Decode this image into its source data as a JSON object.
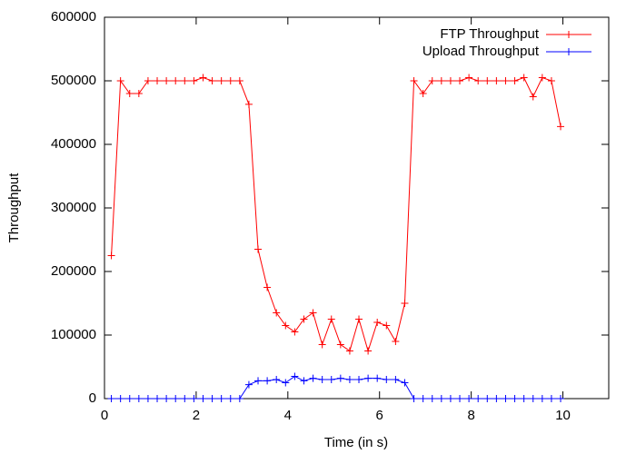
{
  "chart_data": {
    "type": "line",
    "xlabel": "Time (in s)",
    "ylabel": "Throughput",
    "x": [
      0.15,
      0.35,
      0.55,
      0.75,
      0.95,
      1.15,
      1.35,
      1.55,
      1.75,
      1.95,
      2.15,
      2.35,
      2.55,
      2.75,
      2.95,
      3.15,
      3.35,
      3.55,
      3.75,
      3.95,
      4.15,
      4.35,
      4.55,
      4.75,
      4.95,
      5.15,
      5.35,
      5.55,
      5.75,
      5.95,
      6.15,
      6.35,
      6.55,
      6.75,
      6.95,
      7.15,
      7.35,
      7.55,
      7.75,
      7.95,
      8.15,
      8.35,
      8.55,
      8.75,
      8.95,
      9.15,
      9.35,
      9.55,
      9.75,
      9.95
    ],
    "series": [
      {
        "name": "FTP Throughput",
        "color": "#ff0000",
        "values": [
          225000,
          500000,
          480000,
          480000,
          500000,
          500000,
          500000,
          500000,
          500000,
          500000,
          505000,
          500000,
          500000,
          500000,
          500000,
          463000,
          235000,
          175000,
          135000,
          115000,
          105000,
          125000,
          135000,
          85000,
          125000,
          85000,
          75000,
          125000,
          75000,
          120000,
          115000,
          90000,
          150000,
          500000,
          480000,
          500000,
          500000,
          500000,
          500000,
          505000,
          500000,
          500000,
          500000,
          500000,
          500000,
          505000,
          475000,
          505000,
          500000,
          428000
        ]
      },
      {
        "name": "Upload Throughput",
        "color": "#0000ff",
        "values": [
          0,
          0,
          0,
          0,
          0,
          0,
          0,
          0,
          0,
          0,
          0,
          0,
          0,
          0,
          0,
          22000,
          28000,
          28000,
          30000,
          25000,
          35000,
          28000,
          32000,
          30000,
          30000,
          32000,
          30000,
          30000,
          32000,
          32000,
          30000,
          30000,
          25000,
          0,
          0,
          0,
          0,
          0,
          0,
          0,
          0,
          0,
          0,
          0,
          0,
          0,
          0,
          0,
          0,
          0
        ]
      }
    ],
    "xlim": [
      0,
      11
    ],
    "xticks": [
      0,
      2,
      4,
      6,
      8,
      10
    ],
    "ylim": [
      0,
      600000
    ],
    "yticks": [
      0,
      100000,
      200000,
      300000,
      400000,
      500000,
      600000
    ],
    "grid": false,
    "legend": "top-right"
  }
}
